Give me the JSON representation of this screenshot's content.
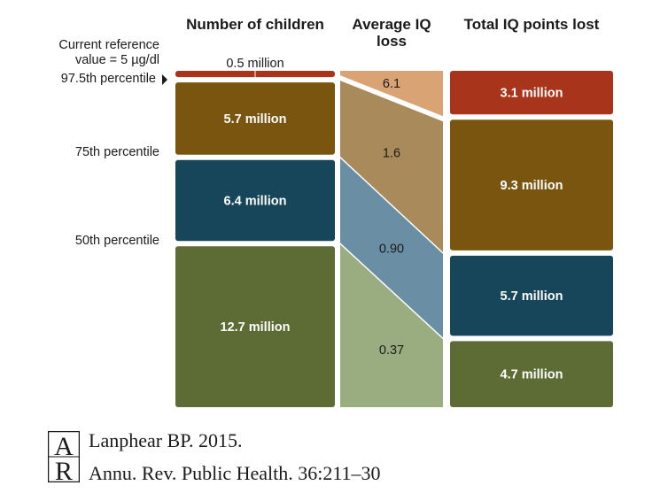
{
  "chart_data": {
    "type": "table",
    "column_headers": [
      "Number of children",
      "Average IQ loss",
      "Total IQ points lost"
    ],
    "reference_label": "Current reference value = 5 µg/dl",
    "reference_label_lines": [
      "Current reference",
      "value = 5 µg/dl"
    ],
    "row_labels": [
      "97.5th percentile",
      "75th percentile",
      "50th percentile"
    ],
    "groups": [
      {
        "children_millions": 0.5,
        "children_label": "0.5 million",
        "iq_loss": 6.1,
        "iq_loss_label": "6.1",
        "total_lost_millions": 3.1,
        "total_lost_label": "3.1 million",
        "color_dark": "#a8341b",
        "color_light": "#d9a373"
      },
      {
        "children_millions": 5.7,
        "children_label": "5.7 million",
        "iq_loss": 1.6,
        "iq_loss_label": "1.6",
        "total_lost_millions": 9.3,
        "total_lost_label": "9.3 million",
        "color_dark": "#7a5510",
        "color_light": "#a98a5a"
      },
      {
        "children_millions": 6.4,
        "children_label": "6.4 million",
        "iq_loss": 0.9,
        "iq_loss_label": "0.90",
        "total_lost_millions": 5.7,
        "total_lost_label": "5.7 million",
        "color_dark": "#17455a",
        "color_light": "#6a8fa4"
      },
      {
        "children_millions": 12.7,
        "children_label": "12.7 million",
        "iq_loss": 0.37,
        "iq_loss_label": "0.37",
        "total_lost_millions": 4.7,
        "total_lost_label": "4.7 million",
        "color_dark": "#5d6b34",
        "color_light": "#9aad80"
      }
    ]
  },
  "logo_text": "AR",
  "citation": {
    "line1": "Lanphear BP. 2015.",
    "line2": "Annu. Rev. Public Health. 36:211–30"
  }
}
